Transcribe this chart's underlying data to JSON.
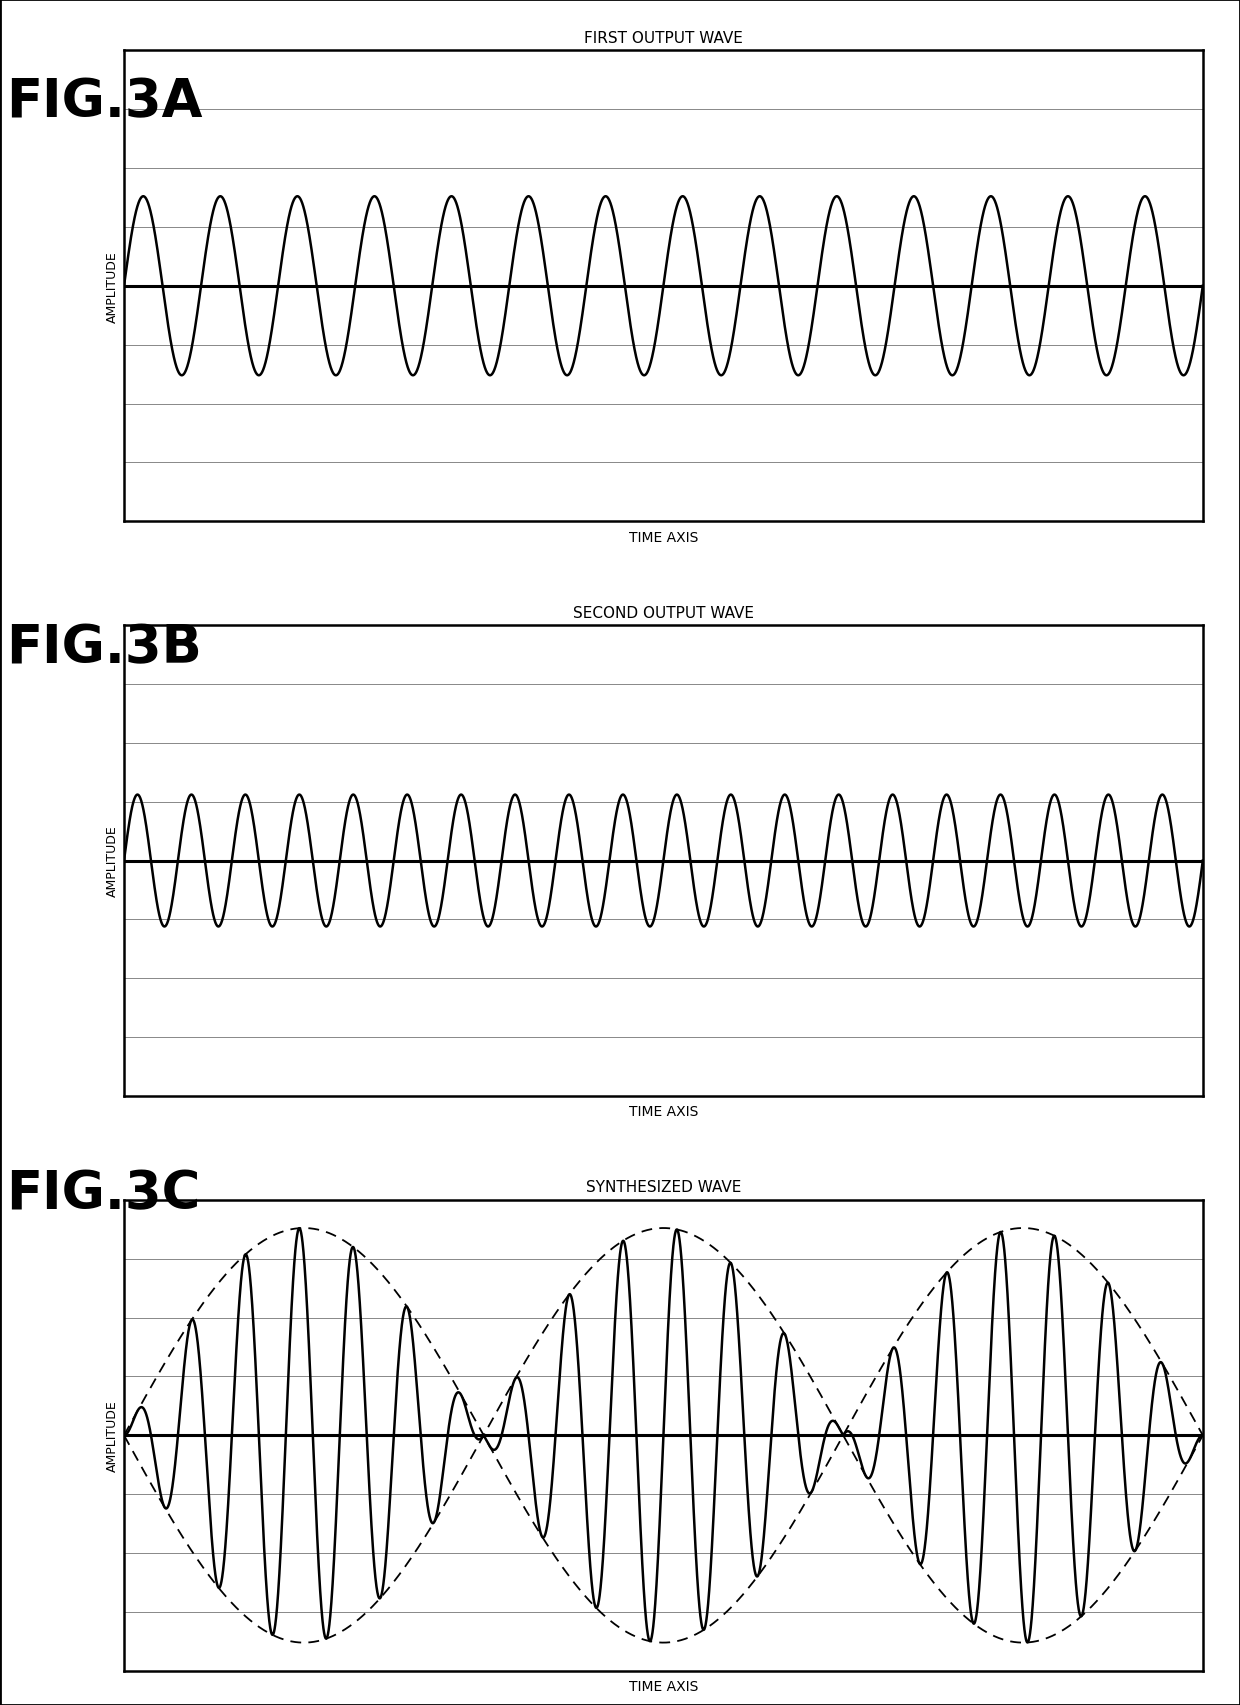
{
  "fig3a_title": "FIRST OUTPUT WAVE",
  "fig3b_title": "SECOND OUTPUT WAVE",
  "fig3c_title": "SYNTHESIZED WAVE",
  "xlabel": "TIME AXIS",
  "ylabel": "AMPLITUDE",
  "fig3a_label": "FIG.3A",
  "fig3b_label": "FIG.3B",
  "fig3c_label": "FIG.3C",
  "background_color": "#ffffff",
  "wave_color": "#000000",
  "grid_color": "#888888",
  "dashed_color": "#000000",
  "fig3a_freq": 14,
  "fig3a_amp": 0.38,
  "fig3b_freq": 20,
  "fig3b_amp": 0.28,
  "fig3c_carrier_freq": 20,
  "fig3c_envelope_freq": 1.5,
  "fig3c_envelope_amp": 0.88,
  "num_hlines": 9,
  "ylim": [
    -1.0,
    1.0
  ],
  "xlim": [
    0,
    1
  ]
}
